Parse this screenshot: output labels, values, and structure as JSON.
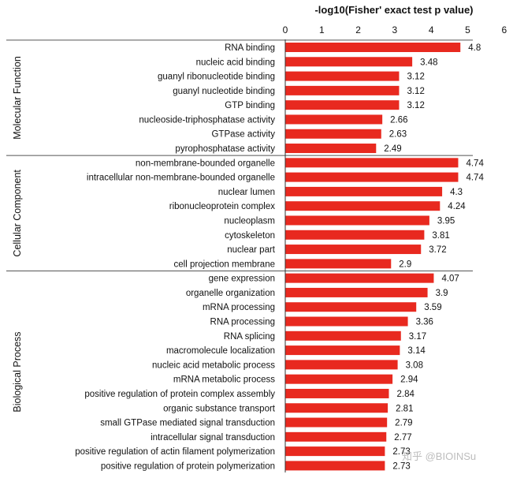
{
  "chart_data": {
    "type": "bar",
    "orientation": "horizontal",
    "title": "-log10(Fisher' exact test p value)",
    "xlim": [
      0,
      6
    ],
    "xticks": [
      "0",
      "1",
      "2",
      "3",
      "4",
      "5",
      "6"
    ],
    "color": "#e8291f",
    "groups": [
      {
        "name": "Molecular Function",
        "categories": [
          "RNA binding",
          "nucleic acid binding",
          "guanyl ribonucleotide binding",
          "guanyl nucleotide binding",
          "GTP binding",
          "nucleoside-triphosphatase activity",
          "GTPase activity",
          "pyrophosphatase activity"
        ],
        "values": [
          4.8,
          3.48,
          3.12,
          3.12,
          3.12,
          2.66,
          2.63,
          2.49
        ]
      },
      {
        "name": "Cellular Component",
        "categories": [
          "non-membrane-bounded organelle",
          "intracellular non-membrane-bounded organelle",
          "nuclear lumen",
          "ribonucleoprotein complex",
          "nucleoplasm",
          "cytoskeleton",
          "nuclear part",
          "cell projection membrane"
        ],
        "values": [
          4.74,
          4.74,
          4.3,
          4.24,
          3.95,
          3.81,
          3.72,
          2.9
        ]
      },
      {
        "name": "Biological Process",
        "categories": [
          "gene expression",
          "organelle organization",
          "mRNA processing",
          "RNA processing",
          "RNA splicing",
          "macromolecule localization",
          "nucleic acid metabolic process",
          "mRNA metabolic process",
          "positive regulation of protein complex assembly",
          "organic substance transport",
          "small GTPase mediated signal transduction",
          "intracellular signal transduction",
          "positive regulation of actin filament polymerization",
          "positive regulation of protein polymerization"
        ],
        "values": [
          4.07,
          3.9,
          3.59,
          3.36,
          3.17,
          3.14,
          3.08,
          2.94,
          2.84,
          2.81,
          2.79,
          2.77,
          2.73,
          2.73
        ]
      }
    ]
  },
  "watermark": "知乎 @BIOINSu"
}
